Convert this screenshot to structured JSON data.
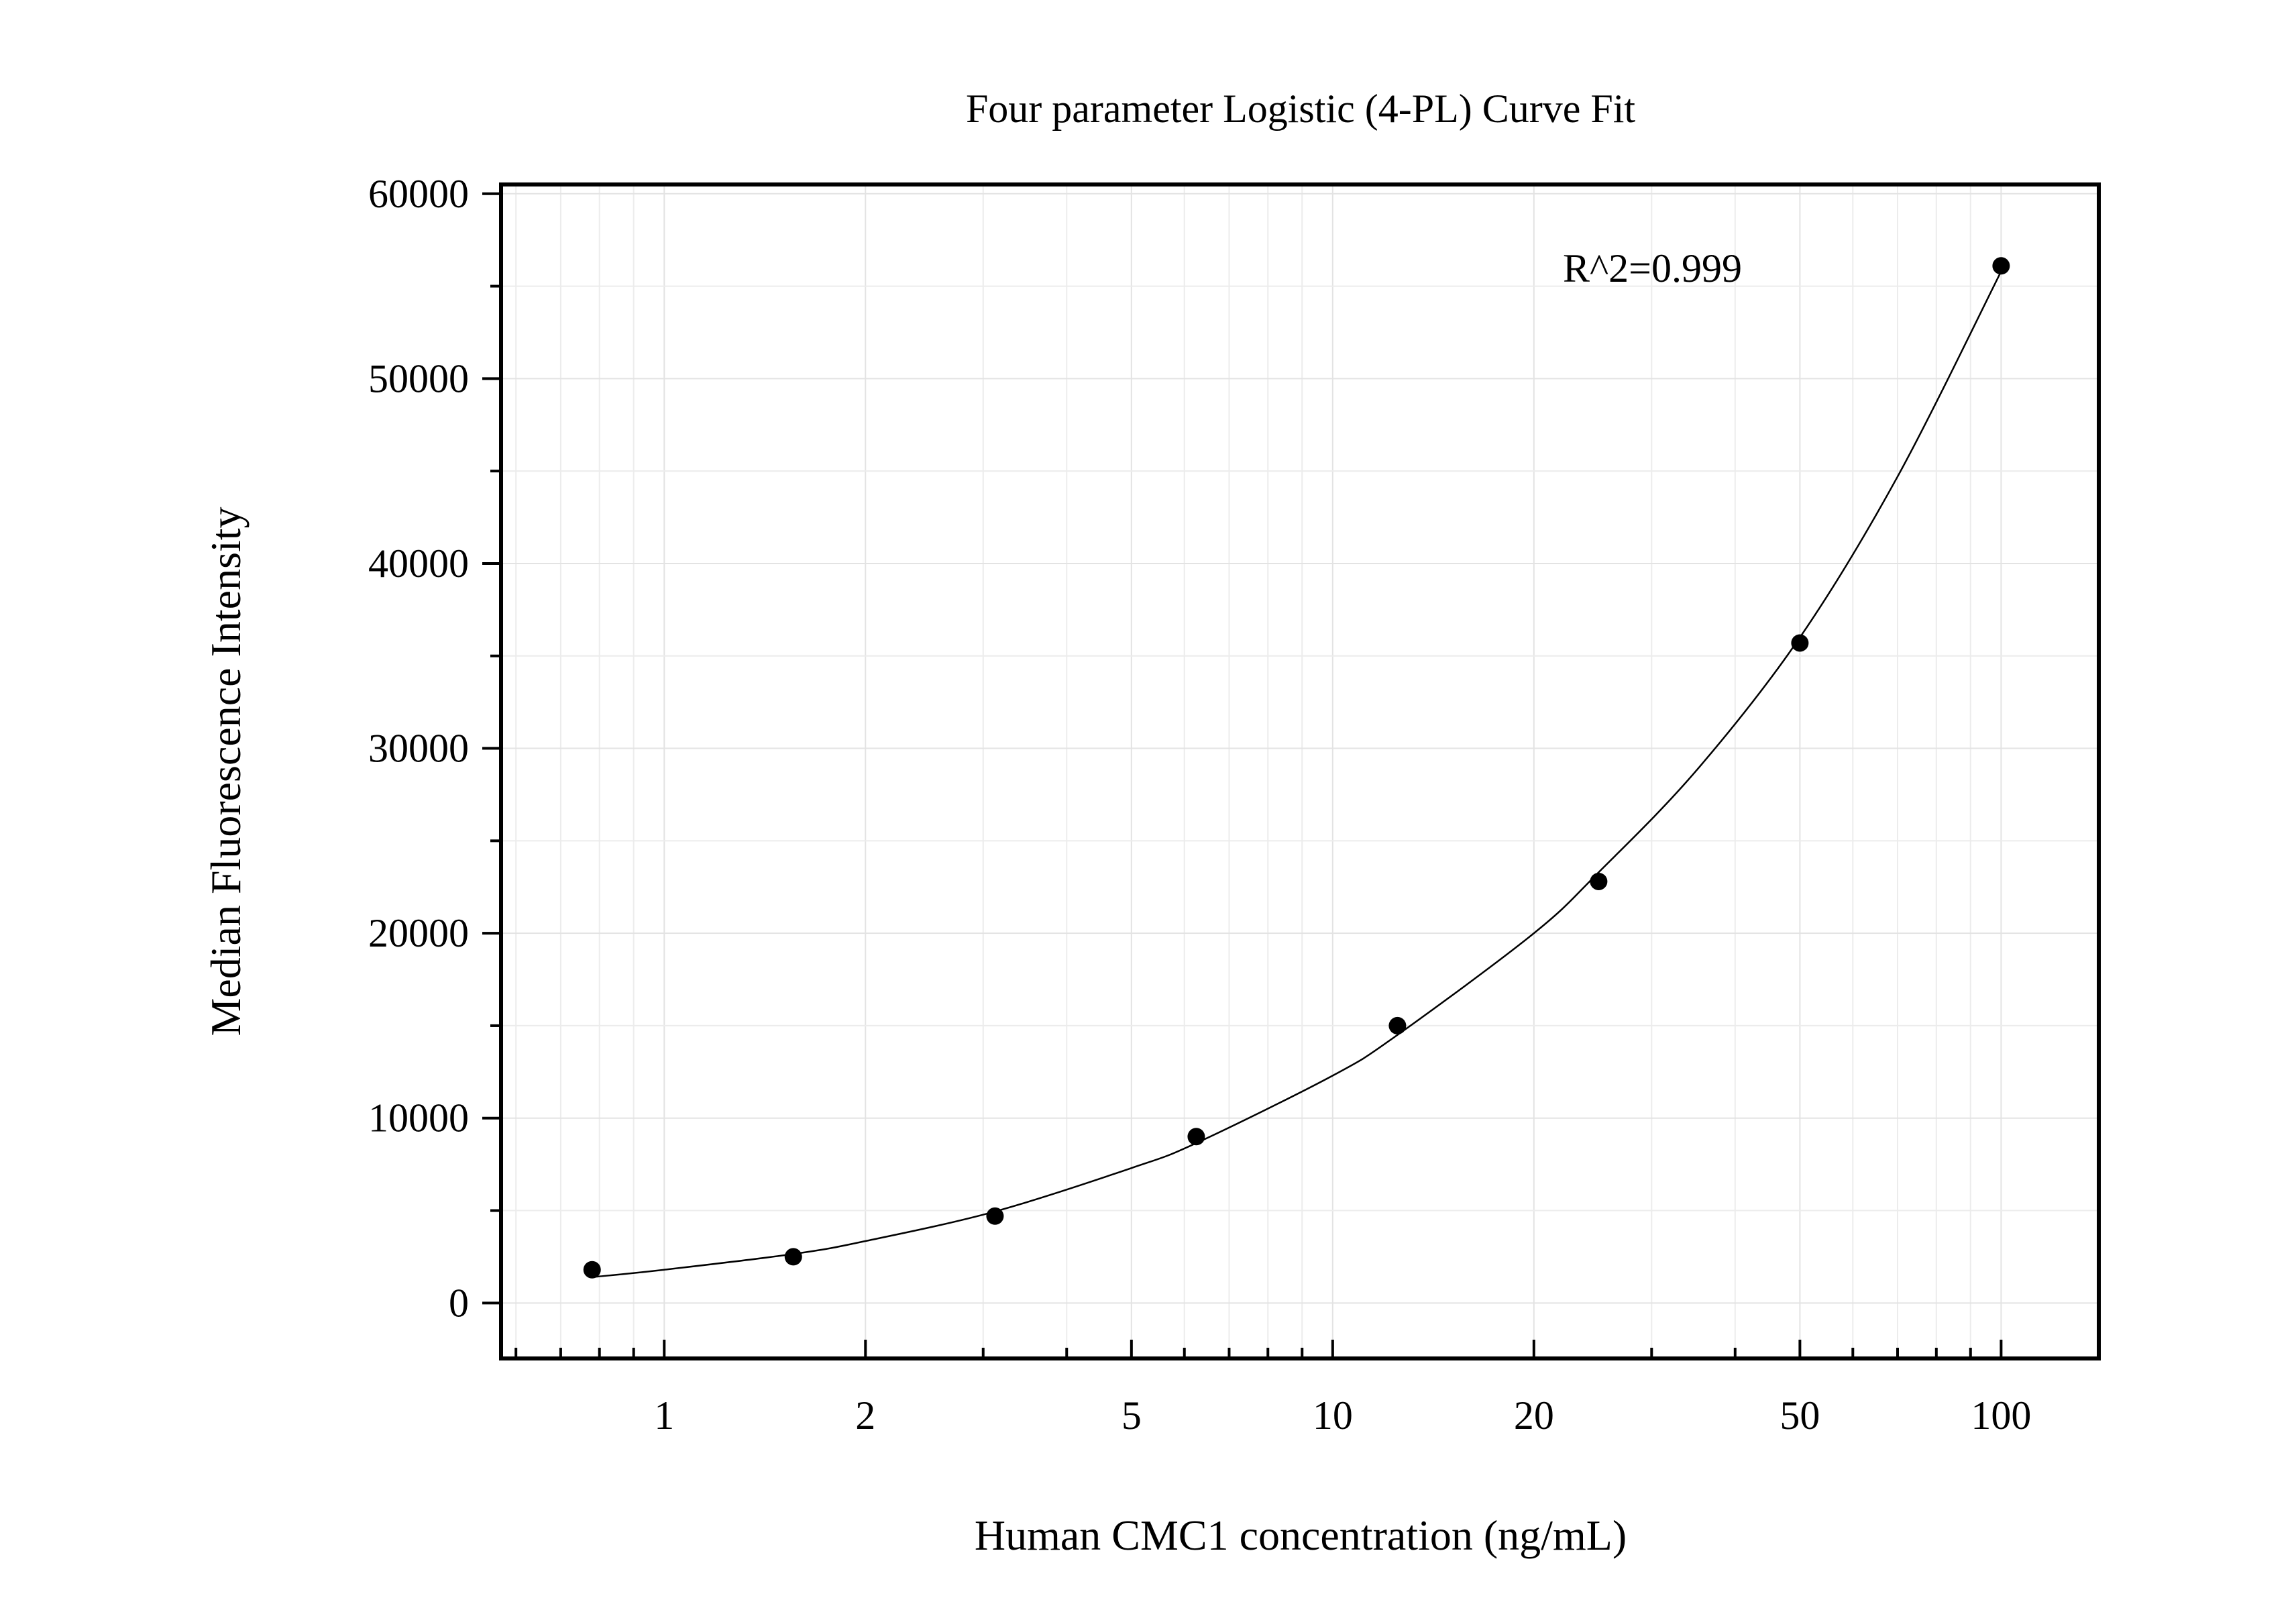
{
  "chart_data": {
    "type": "scatter",
    "title": "Four parameter Logistic (4-PL) Curve Fit",
    "xlabel": "Human CMC1 concentration (ng/mL)",
    "ylabel": "Median Fluorescence Intensity",
    "x_scale": "log",
    "xlim": [
      0.57,
      140
    ],
    "ylim": [
      -3000,
      60500
    ],
    "x_ticks": [
      1,
      2,
      5,
      10,
      20,
      50,
      100
    ],
    "x_tick_labels": [
      "1",
      "2",
      "5",
      "10",
      "20",
      "50",
      "100"
    ],
    "y_ticks": [
      0,
      10000,
      20000,
      30000,
      40000,
      50000,
      60000
    ],
    "y_tick_labels": [
      "0",
      "10000",
      "20000",
      "30000",
      "40000",
      "50000",
      "60000"
    ],
    "y_minor_ticks": [
      5000,
      15000,
      25000,
      35000,
      45000,
      55000
    ],
    "grid": true,
    "annotation": "R^2=0.999",
    "series": [
      {
        "mode": "markers",
        "x": [
          0.78,
          1.56,
          3.125,
          6.25,
          12.5,
          25,
          50,
          100
        ],
        "y": [
          1800,
          2500,
          4700,
          9000,
          15000,
          22800,
          35700,
          56100
        ]
      },
      {
        "mode": "line",
        "fit": "4PL",
        "x": [
          0.78,
          1,
          1.56,
          2,
          3.125,
          5,
          6.25,
          10,
          12.5,
          20,
          25,
          35,
          50,
          70,
          100
        ],
        "y": [
          1400,
          1800,
          2650,
          3350,
          4950,
          7300,
          8650,
          12300,
          14500,
          20000,
          23300,
          28800,
          36000,
          44700,
          55800
        ]
      }
    ]
  }
}
